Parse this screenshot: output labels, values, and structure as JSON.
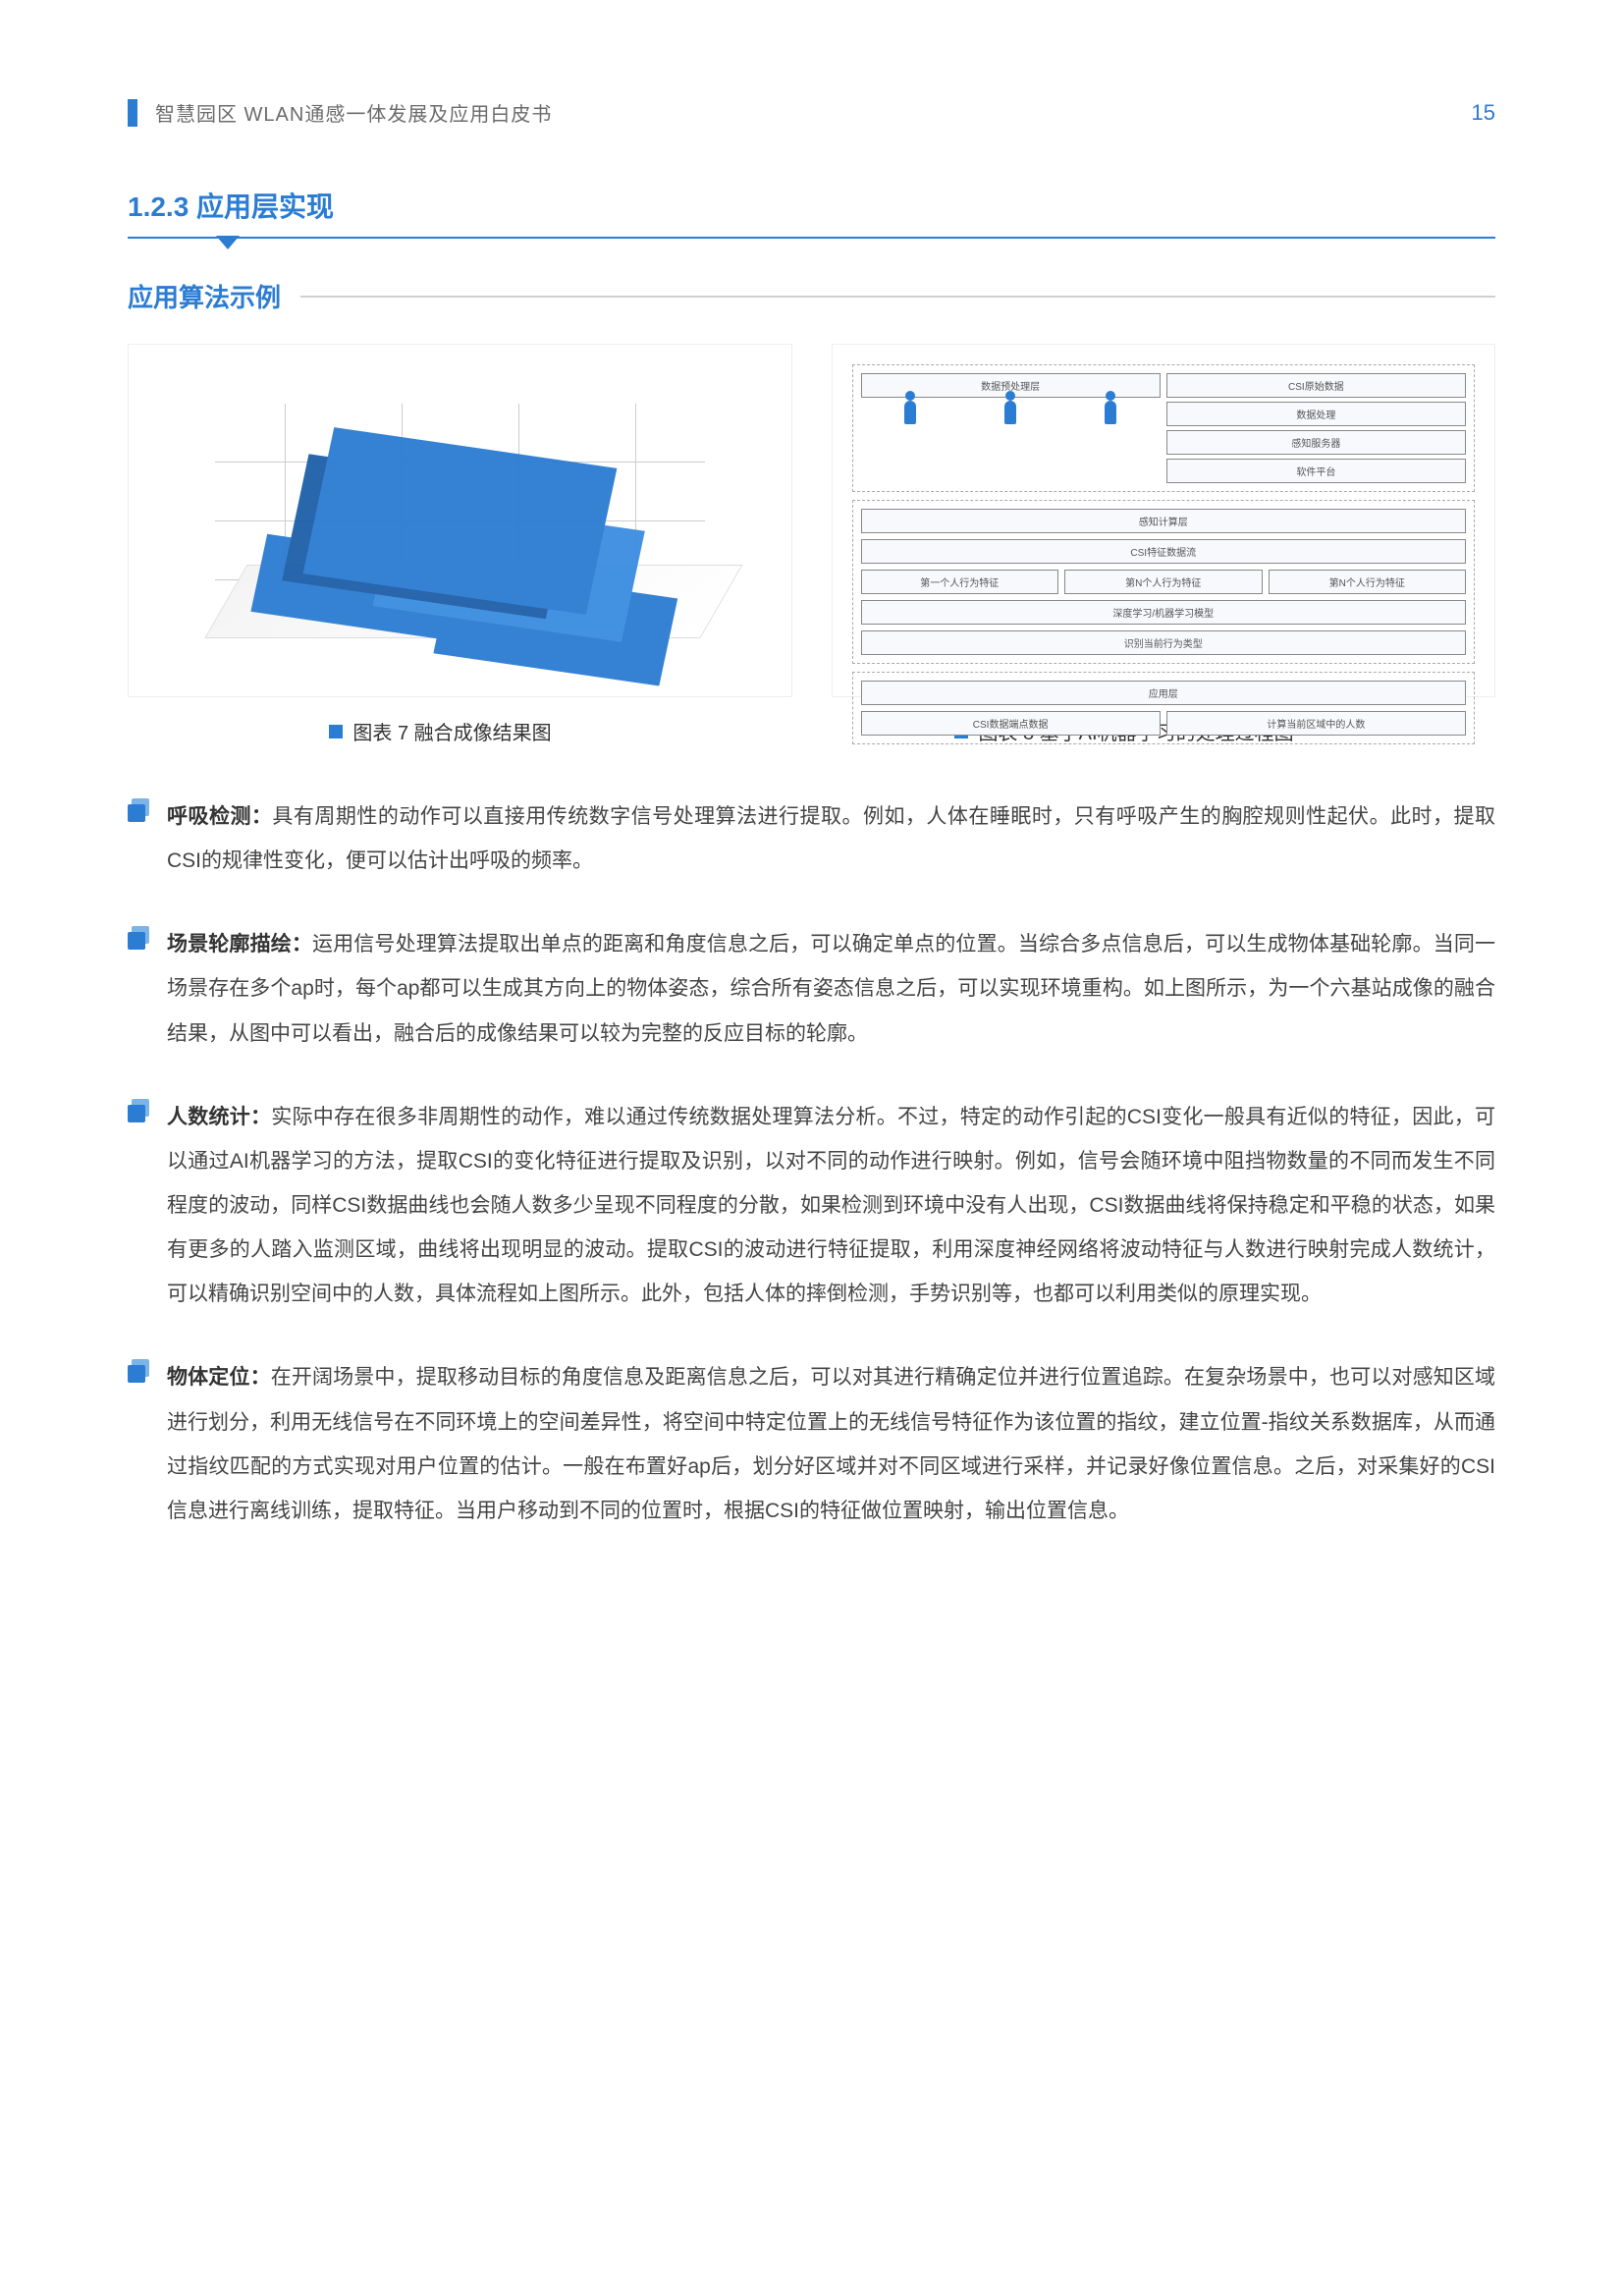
{
  "header": {
    "doc_title": "智慧园区  WLAN通感一体发展及应用白皮书",
    "page_number": "15"
  },
  "section": {
    "number_title": "1.2.3 应用层实现",
    "sub_title": "应用算法示例"
  },
  "figures": {
    "fig7_caption": "图表 7 融合成像结果图",
    "fig8_caption": "图表 8 基于AI机器学习的处理过程图",
    "fig8": {
      "group1_title": "数据预处理层",
      "g1_box1": "CSI原始数据",
      "g1_box2": "数据处理",
      "g1_box3": "感知服务器",
      "g1_box4": "软件平台",
      "group2_title": "感知计算层",
      "g2_box1": "CSI特征数据流",
      "g2_row1_a": "第一个人行为特征",
      "g2_row1_b": "第N个人行为特征",
      "g2_row1_c": "第N个人行为特征",
      "g2_box2": "深度学习/机器学习模型",
      "g2_box3": "识别当前行为类型",
      "group3_title": "应用层",
      "g3_box1": "CSI数据端点数据",
      "g3_box2": "计算当前区域中的人数"
    }
  },
  "bullets": [
    {
      "title": "呼吸检测：",
      "body": "具有周期性的动作可以直接用传统数字信号处理算法进行提取。例如，人体在睡眠时，只有呼吸产生的胸腔规则性起伏。此时，提取CSI的规律性变化，便可以估计出呼吸的频率。"
    },
    {
      "title": "场景轮廓描绘：",
      "body": "运用信号处理算法提取出单点的距离和角度信息之后，可以确定单点的位置。当综合多点信息后，可以生成物体基础轮廓。当同一场景存在多个ap时，每个ap都可以生成其方向上的物体姿态，综合所有姿态信息之后，可以实现环境重构。如上图所示，为一个六基站成像的融合结果，从图中可以看出，融合后的成像结果可以较为完整的反应目标的轮廓。"
    },
    {
      "title": "人数统计：",
      "body": "实际中存在很多非周期性的动作，难以通过传统数据处理算法分析。不过，特定的动作引起的CSI变化一般具有近似的特征，因此，可以通过AI机器学习的方法，提取CSI的变化特征进行提取及识别，以对不同的动作进行映射。例如，信号会随环境中阻挡物数量的不同而发生不同程度的波动，同样CSI数据曲线也会随人数多少呈现不同程度的分散，如果检测到环境中没有人出现，CSI数据曲线将保持稳定和平稳的状态，如果有更多的人踏入监测区域，曲线将出现明显的波动。提取CSI的波动进行特征提取，利用深度神经网络将波动特征与人数进行映射完成人数统计，可以精确识别空间中的人数，具体流程如上图所示。此外，包括人体的摔倒检测，手势识别等，也都可以利用类似的原理实现。"
    },
    {
      "title": "物体定位：",
      "body": "在开阔场景中，提取移动目标的角度信息及距离信息之后，可以对其进行精确定位并进行位置追踪。在复杂场景中，也可以对感知区域进行划分，利用无线信号在不同环境上的空间差异性，将空间中特定位置上的无线信号特征作为该位置的指纹，建立位置-指纹关系数据库，从而通过指纹匹配的方式实现对用户位置的估计。一般在布置好ap后，划分好区域并对不同区域进行采样，并记录好像位置信息。之后，对采集好的CSI信息进行离线训练，提取特征。当用户移动到不同的位置时，根据CSI的特征做位置映射，输出位置信息。"
    }
  ]
}
